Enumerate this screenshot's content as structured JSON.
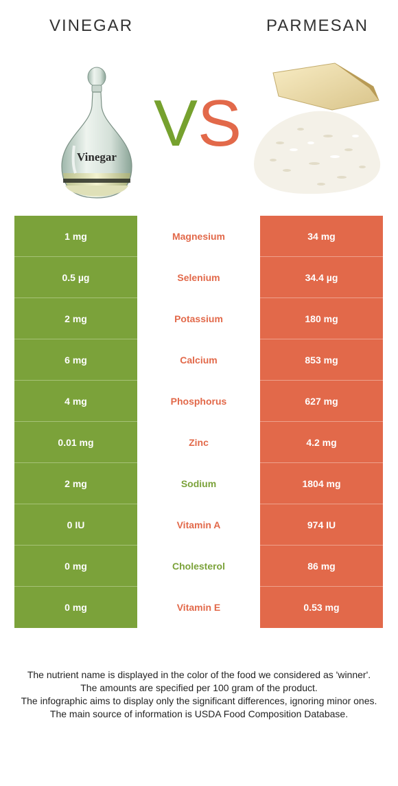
{
  "header": {
    "left_food": "VINEGAR",
    "right_food": "PARMESAN",
    "vs_v": "V",
    "vs_s": "S"
  },
  "images": {
    "bottle_label": "Vinegar"
  },
  "colors": {
    "left_winner": "#7ba23a",
    "right_winner": "#e2694a",
    "left_row_bg": "#7ba23a",
    "right_row_bg": "#e2694a"
  },
  "rows": [
    {
      "left": "1 mg",
      "nutrient": "Magnesium",
      "right": "34 mg",
      "winner": "right"
    },
    {
      "left": "0.5 µg",
      "nutrient": "Selenium",
      "right": "34.4 µg",
      "winner": "right"
    },
    {
      "left": "2 mg",
      "nutrient": "Potassium",
      "right": "180 mg",
      "winner": "right"
    },
    {
      "left": "6 mg",
      "nutrient": "Calcium",
      "right": "853 mg",
      "winner": "right"
    },
    {
      "left": "4 mg",
      "nutrient": "Phosphorus",
      "right": "627 mg",
      "winner": "right"
    },
    {
      "left": "0.01 mg",
      "nutrient": "Zinc",
      "right": "4.2 mg",
      "winner": "right"
    },
    {
      "left": "2 mg",
      "nutrient": "Sodium",
      "right": "1804 mg",
      "winner": "left"
    },
    {
      "left": "0 IU",
      "nutrient": "Vitamin A",
      "right": "974 IU",
      "winner": "right"
    },
    {
      "left": "0 mg",
      "nutrient": "Cholesterol",
      "right": "86 mg",
      "winner": "left"
    },
    {
      "left": "0 mg",
      "nutrient": "Vitamin E",
      "right": "0.53 mg",
      "winner": "right"
    }
  ],
  "footnote": {
    "line1": "The nutrient name is displayed in the color of the food we considered as 'winner'.",
    "line2": "The amounts are specified per 100 gram of the product.",
    "line3": "The infographic aims to display only the significant differences, ignoring minor ones.",
    "line4": "The main source of information is USDA Food Composition Database."
  }
}
